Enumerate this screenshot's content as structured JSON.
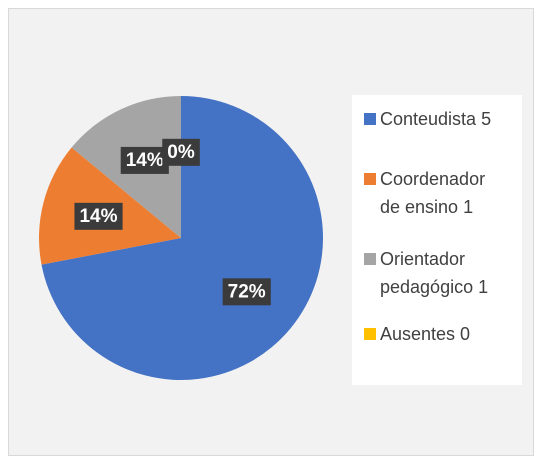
{
  "chart_data": {
    "type": "pie",
    "categories": [
      "Conteudista 5",
      "Coordenador de ensino 1",
      "Orientador pedagógico 1",
      "Ausentes 0"
    ],
    "values": [
      72,
      14,
      14,
      0
    ],
    "value_labels": [
      "72%",
      "14%",
      "14%",
      "0%"
    ],
    "colors": [
      "#4472c4",
      "#ed7d31",
      "#a5a5a5",
      "#ffc000"
    ],
    "legend": "right"
  }
}
